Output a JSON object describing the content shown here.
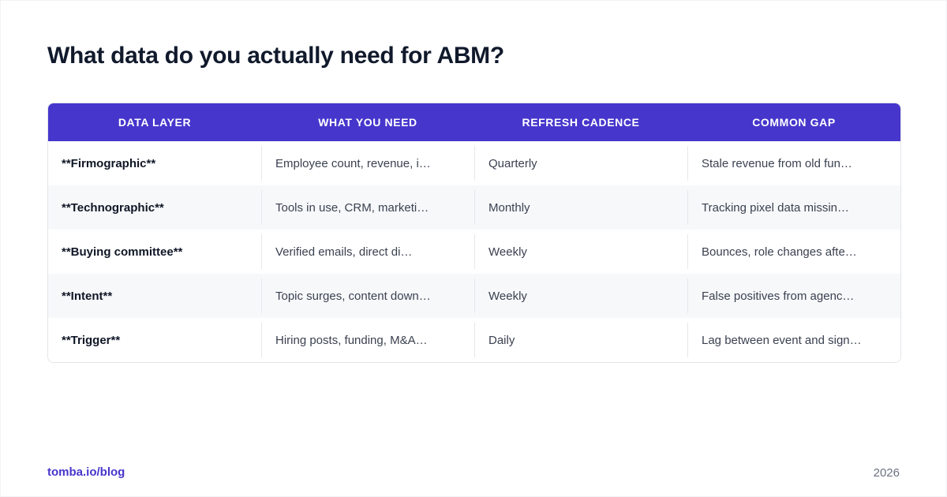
{
  "title": "What data do you actually need for ABM?",
  "table": {
    "headers": [
      "DATA LAYER",
      "WHAT YOU NEED",
      "REFRESH CADENCE",
      "COMMON GAP"
    ],
    "rows": [
      [
        "**Firmographic**",
        "Employee count, revenue, i…",
        "Quarterly",
        "Stale revenue from old fun…"
      ],
      [
        "**Technographic**",
        "Tools in use, CRM, marketi…",
        "Monthly",
        "Tracking pixel data missin…"
      ],
      [
        "**Buying committee**",
        "Verified emails, direct di…",
        "Weekly",
        "Bounces, role changes afte…"
      ],
      [
        "**Intent**",
        "Topic surges, content down…",
        "Weekly",
        "False positives from agenc…"
      ],
      [
        "**Trigger**",
        "Hiring posts, funding, M&A…",
        "Daily",
        "Lag between event and sign…"
      ]
    ]
  },
  "footer": {
    "link": "tomba.io/blog",
    "year": "2026"
  },
  "colors": {
    "accent": "#4636cc",
    "title": "#111a2c",
    "row_alt": "#f7f8fa"
  }
}
